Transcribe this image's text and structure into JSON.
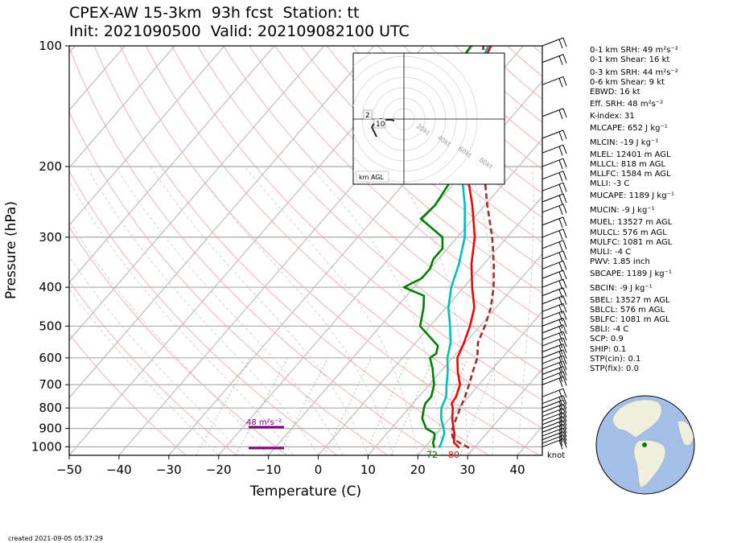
{
  "header": {
    "title_line1": "CPEX-AW 15-3km  93h fcst  Station: tt",
    "title_line2": "Init: 2021090500  Valid: 202109082100 UTC"
  },
  "chart_data": {
    "type": "line",
    "xlabel": "Temperature (C)",
    "ylabel": "Pressure (hPa)",
    "xlim": [
      -50,
      45
    ],
    "ylim": [
      1050,
      100
    ],
    "y_scale": "log",
    "skew": true,
    "x_ticks": [
      "−50",
      "−40",
      "−30",
      "−20",
      "−10",
      "0",
      "10",
      "20",
      "30",
      "40"
    ],
    "x_tick_values": [
      -50,
      -40,
      -30,
      -20,
      -10,
      0,
      10,
      20,
      30,
      40
    ],
    "y_ticks": [
      "100",
      "200",
      "300",
      "400",
      "500",
      "600",
      "700",
      "800",
      "900",
      "1000"
    ],
    "y_tick_values": [
      100,
      200,
      300,
      400,
      500,
      600,
      700,
      800,
      900,
      1000
    ],
    "grid": true,
    "series": [
      {
        "color": "#ff0000",
        "points": [
          [
            1006,
            27.0
          ],
          [
            975,
            25.0
          ],
          [
            950,
            24.3
          ],
          [
            925,
            23.5
          ],
          [
            900,
            22.5
          ],
          [
            850,
            20.5
          ],
          [
            800,
            18.8
          ],
          [
            780,
            17.8
          ],
          [
            750,
            17.5
          ],
          [
            700,
            16.2
          ],
          [
            650,
            13.5
          ],
          [
            600,
            11.0
          ],
          [
            550,
            9.7
          ],
          [
            500,
            8.0
          ],
          [
            450,
            5.7
          ],
          [
            400,
            1.7
          ],
          [
            350,
            -2.5
          ],
          [
            300,
            -6.5
          ],
          [
            250,
            -12.5
          ],
          [
            200,
            -20.5
          ],
          [
            150,
            -28.5
          ],
          [
            120,
            -34.0
          ],
          [
            100,
            -36.5
          ]
        ]
      },
      {
        "color": "#00bfbf",
        "points": [
          [
            1006,
            23.0
          ],
          [
            975,
            22.5
          ],
          [
            950,
            22.0
          ],
          [
            925,
            21.5
          ],
          [
            900,
            20.5
          ],
          [
            850,
            18.3
          ],
          [
            800,
            16.5
          ],
          [
            750,
            15.5
          ],
          [
            700,
            13.5
          ],
          [
            650,
            11.5
          ],
          [
            600,
            9.0
          ],
          [
            550,
            7.0
          ],
          [
            500,
            4.0
          ],
          [
            450,
            0.5
          ],
          [
            400,
            -2.5
          ],
          [
            350,
            -5.0
          ],
          [
            300,
            -8.5
          ],
          [
            250,
            -14.0
          ],
          [
            200,
            -21.5
          ],
          [
            150,
            -29.5
          ],
          [
            120,
            -34.5
          ],
          [
            100,
            -37.0
          ]
        ]
      },
      {
        "color": "#008000",
        "points": [
          [
            1006,
            22.0
          ],
          [
            975,
            20.8
          ],
          [
            950,
            20.3
          ],
          [
            925,
            19.5
          ],
          [
            900,
            17.0
          ],
          [
            850,
            14.5
          ],
          [
            800,
            13.0
          ],
          [
            780,
            12.5
          ],
          [
            750,
            12.5
          ],
          [
            700,
            11.0
          ],
          [
            650,
            8.5
          ],
          [
            640,
            8.0
          ],
          [
            600,
            5.5
          ],
          [
            585,
            6.0
          ],
          [
            560,
            5.0
          ],
          [
            500,
            -2.0
          ],
          [
            450,
            -4.5
          ],
          [
            420,
            -6.5
          ],
          [
            400,
            -12.0
          ],
          [
            380,
            -10.0
          ],
          [
            360,
            -10.0
          ],
          [
            340,
            -11.0
          ],
          [
            320,
            -11.0
          ],
          [
            300,
            -13.0
          ],
          [
            270,
            -20.5
          ],
          [
            250,
            -20.0
          ],
          [
            220,
            -21.0
          ],
          [
            200,
            -25.0
          ],
          [
            180,
            -29.0
          ],
          [
            160,
            -33.5
          ],
          [
            150,
            -35.5
          ],
          [
            130,
            -38.0
          ],
          [
            120,
            -39.5
          ],
          [
            100,
            -40.5
          ]
        ]
      },
      {
        "color": "#a52a2a",
        "dash": true,
        "points": [
          [
            1006,
            29.0
          ],
          [
            975,
            26.0
          ],
          [
            950,
            24.0
          ],
          [
            925,
            23.0
          ],
          [
            900,
            22.3
          ],
          [
            850,
            21.3
          ],
          [
            800,
            20.3
          ],
          [
            750,
            19.3
          ],
          [
            700,
            18.0
          ],
          [
            650,
            16.5
          ],
          [
            600,
            15.0
          ],
          [
            550,
            12.5
          ],
          [
            500,
            11.0
          ],
          [
            450,
            9.0
          ],
          [
            400,
            6.0
          ],
          [
            350,
            2.0
          ],
          [
            300,
            -3.0
          ],
          [
            250,
            -9.5
          ],
          [
            200,
            -17.0
          ],
          [
            150,
            -27.5
          ],
          [
            100,
            -38.0
          ]
        ]
      }
    ],
    "annotations": [
      "48 m²s⁻²",
      "72",
      "80",
      "knot"
    ],
    "hodograph": {
      "rings": [
        "20kt",
        "40kt",
        "60kt",
        "80kt"
      ],
      "heights": [
        "2",
        "10"
      ],
      "label": "km AGL"
    }
  },
  "indices": [
    "0-1 km SRH: 49 m²s⁻²",
    "0-1 km Shear: 16 kt",
    "0-3 km SRH: 44 m²s⁻²",
    "0-6 km Shear: 9 kt",
    "EBWD: 16 kt",
    "Eff. SRH: 48 m²s⁻²",
    "K-index: 31",
    "MLCAPE: 652 J kg⁻¹",
    "MLCIN: -19 J kg⁻¹",
    "MLEL: 12401 m AGL",
    "MLLCL: 818 m AGL",
    "MLLFC: 1584 m AGL",
    "MLLI: -3 C",
    "MUCAPE: 1189 J kg⁻¹",
    "MUCIN: -9 J kg⁻¹",
    "MUEL: 13527 m AGL",
    "MULCL: 576 m AGL",
    "MULFC: 1081 m AGL",
    "MULI: -4 C",
    "PWV: 1.85 inch",
    "SBCAPE: 1189 J kg⁻¹",
    "SBCIN: -9 J kg⁻¹",
    "SBEL: 13527 m AGL",
    "SBLCL: 576 m AGL",
    "SBLFC: 1081 m AGL",
    "SBLI: -4 C",
    "SCP: 0.9",
    "SHIP: 0.1",
    "STP(cin): 0.1",
    "STP(fix): 0.0"
  ],
  "footer": {
    "created": "created 2021-09-05 05:37:29"
  },
  "colors": {
    "temperature": "#ff0000",
    "dewpoint": "#008000",
    "wetbulb": "#00bfbf",
    "parcel": "#a52a2a",
    "srh": "#800080",
    "globe_ocean": "#a3bfe8",
    "globe_land": "#f0eedc"
  }
}
